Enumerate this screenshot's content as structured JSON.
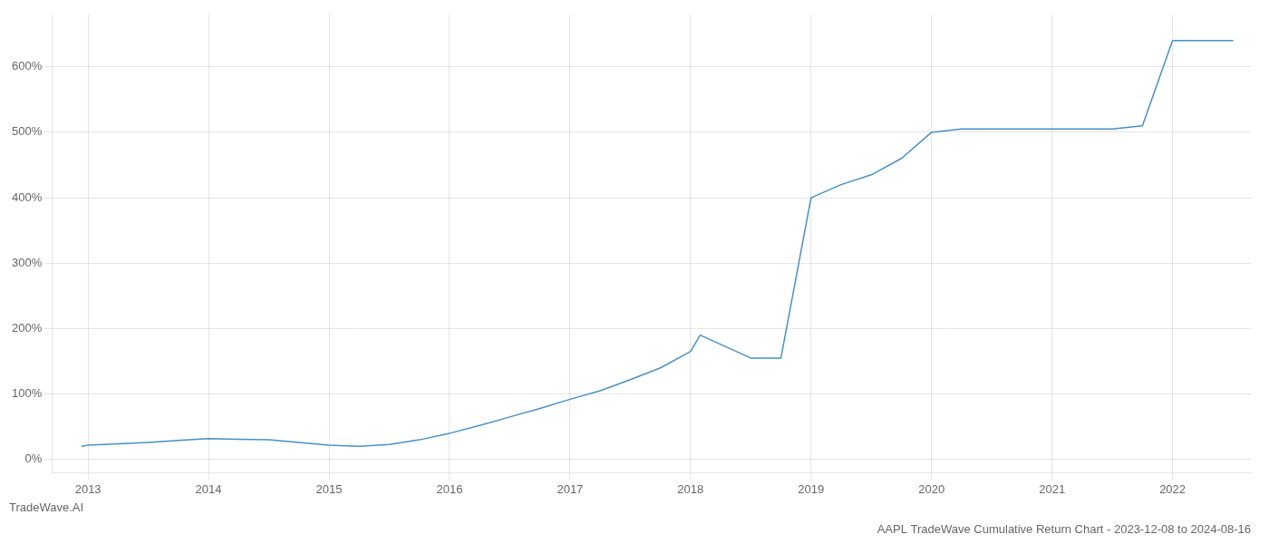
{
  "chart_data": {
    "type": "line",
    "title": "AAPL TradeWave Cumulative Return Chart - 2023-12-08 to 2024-08-16",
    "annotations": [
      "TradeWave.AI"
    ],
    "x": [
      2012.95,
      2013.0,
      2013.25,
      2013.5,
      2013.75,
      2014.0,
      2014.25,
      2014.5,
      2014.75,
      2015.0,
      2015.1,
      2015.25,
      2015.5,
      2015.75,
      2016.0,
      2016.25,
      2016.5,
      2016.75,
      2017.0,
      2017.25,
      2017.5,
      2017.75,
      2018.0,
      2018.08,
      2018.5,
      2018.75,
      2019.0,
      2019.25,
      2019.5,
      2019.75,
      2020.0,
      2020.25,
      2020.5,
      2020.75,
      2021.0,
      2021.25,
      2021.5,
      2021.75,
      2022.0,
      2022.5
    ],
    "values": [
      20,
      22,
      24,
      26,
      29,
      32,
      31,
      30,
      26,
      22,
      21,
      20,
      23,
      30,
      40,
      52,
      65,
      78,
      92,
      105,
      122,
      140,
      165,
      190,
      155,
      155,
      400,
      420,
      435,
      460,
      500,
      505,
      505,
      505,
      505,
      505,
      505,
      510,
      640,
      640
    ],
    "color": "#4a90c4",
    "xlim": [
      2012.7,
      2022.65
    ],
    "xticks": [
      2013,
      2014,
      2015,
      2016,
      2017,
      2018,
      2019,
      2020,
      2021,
      2022
    ],
    "ylim": [
      -20,
      680
    ],
    "yticks": [
      {
        "value": 0,
        "label": "0%"
      },
      {
        "value": 100,
        "label": "100%"
      },
      {
        "value": 200,
        "label": "200%"
      },
      {
        "value": 300,
        "label": "300%"
      },
      {
        "value": 400,
        "label": "400%"
      },
      {
        "value": 500,
        "label": "500%"
      },
      {
        "value": 600,
        "label": "600%"
      }
    ],
    "grid": true
  }
}
